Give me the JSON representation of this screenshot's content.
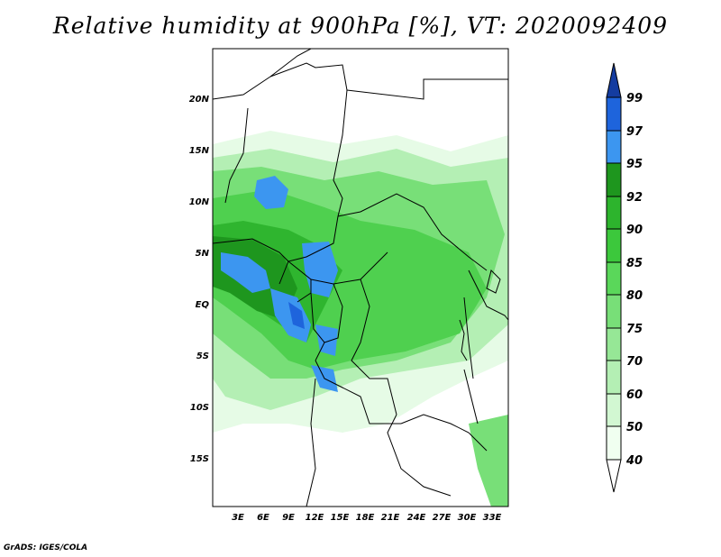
{
  "title": "Relative humidity at 900hPa [%], VT: 2020092409",
  "credit": "GrADS: IGES/COLA",
  "colors": {
    "c40": "#f0fff0",
    "c50": "#d2f7d2",
    "c60": "#b4efb4",
    "c70": "#96e796",
    "c75": "#78df78",
    "c80": "#5ad75a",
    "c85": "#3cc83c",
    "c90": "#2db42d",
    "c92": "#1e961e",
    "c95": "#3c96f0",
    "c97": "#1e64dc",
    "c99": "#143ca0"
  },
  "map": {
    "lat_labels": [
      "20N",
      "15N",
      "10N",
      "5N",
      "EQ",
      "5S",
      "10S",
      "15S"
    ],
    "lon_labels": [
      "3E",
      "6E",
      "9E",
      "12E",
      "15E",
      "18E",
      "21E",
      "24E",
      "27E",
      "30E",
      "33E"
    ]
  },
  "colorbar": {
    "labels": [
      "99",
      "97",
      "95",
      "92",
      "90",
      "85",
      "80",
      "75",
      "70",
      "60",
      "50",
      "40"
    ]
  }
}
